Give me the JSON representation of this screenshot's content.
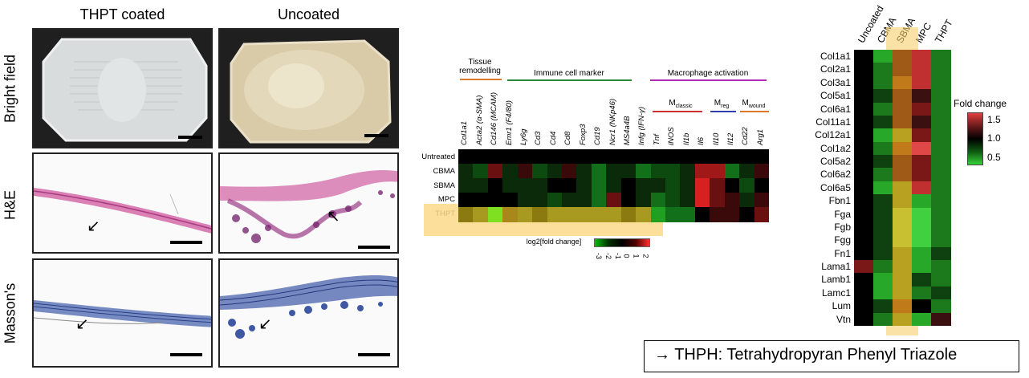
{
  "histology": {
    "columns": [
      "THPT coated",
      "Uncoated"
    ],
    "rows": [
      "Bright field",
      "H&E",
      "Masson's"
    ]
  },
  "heatmap1": {
    "groups": [
      {
        "label": "Tissue\nremodelling",
        "color": "#e07a2a"
      },
      {
        "label": "Immune cell marker",
        "color": "#2a8a3a"
      },
      {
        "label": "Macrophage activation",
        "color": "#b02ab8"
      }
    ],
    "subgroups": [
      {
        "label": "M",
        "sub": "classic",
        "color": "#d03030"
      },
      {
        "label": "M",
        "sub": "reg",
        "color": "#3040b0"
      },
      {
        "label": "M",
        "sub": "wound",
        "color": "#e07a2a"
      }
    ],
    "genes": [
      "Col1a1",
      "Acta2 (α-SMA)",
      "Cd146 (MCAM)",
      "Emr1 (F4/80)",
      "Ly6g",
      "Cd3",
      "Cd4",
      "Cd8",
      "Foxp3",
      "Cd19",
      "Ncr1 (NKp46)",
      "MS4a4B",
      "Infg (IFN-γ)",
      "Tnf",
      "iNOS",
      "Il1b",
      "Il6",
      "Il10",
      "Il12",
      "Cd22",
      "Arg1"
    ],
    "rows": [
      "Untreated",
      "CBMA",
      "SBMA",
      "MPC",
      "THPT"
    ],
    "legend_label": "log2[fold change]",
    "legend_ticks": [
      "-3",
      "-2",
      "-1",
      "0",
      "1",
      "2"
    ]
  },
  "heatmap2": {
    "columns": [
      "Uncoated",
      "CBMA",
      "SBMA",
      "MPC",
      "THPT"
    ],
    "rows": [
      "Col1a1",
      "Col2a1",
      "Col3a1",
      "Col5a1",
      "Col6a1",
      "Col11a1",
      "Col12a1",
      "Col1a2",
      "Col5a2",
      "Col6a2",
      "Col6a5",
      "Fbn1",
      "Fga",
      "Fgb",
      "Fgg",
      "Fn1",
      "Lama1",
      "Lamb1",
      "Lamc1",
      "Lum",
      "Vtn"
    ],
    "legend_title": "Fold change",
    "legend_ticks": [
      "1.5",
      "1.0",
      "0.5"
    ]
  },
  "note": "→ THPH: Tetrahydropyran Phenyl Triazole"
}
